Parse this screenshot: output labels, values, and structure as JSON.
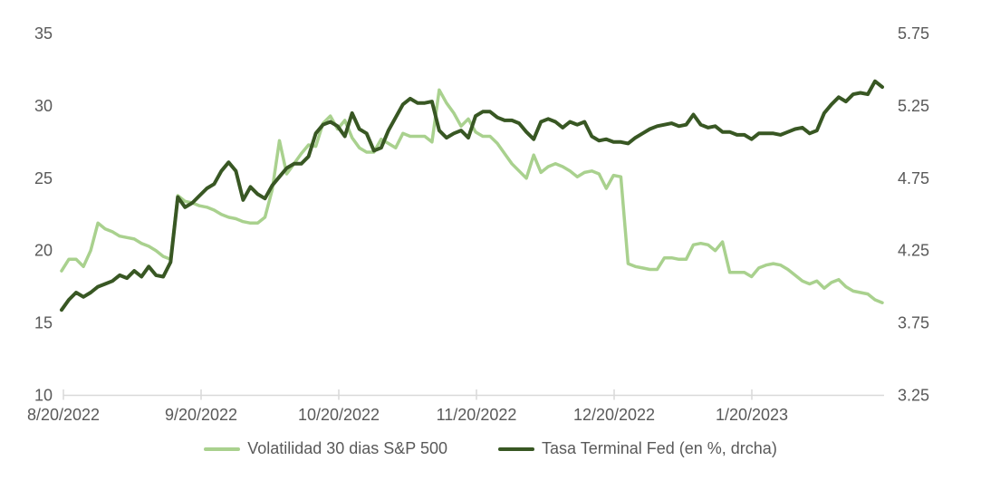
{
  "chart_data": {
    "type": "line",
    "title": "",
    "x_axis": {
      "tick_labels": [
        "8/20/2022",
        "9/20/2022",
        "10/20/2022",
        "11/20/2022",
        "12/20/2022",
        "1/20/2023"
      ],
      "range_days_from_first_tick": [
        0,
        184
      ],
      "grid": "off"
    },
    "left_y_axis": {
      "ticks": [
        35,
        30,
        25,
        20,
        15,
        10
      ],
      "range": [
        10,
        35
      ]
    },
    "right_y_axis": {
      "ticks": [
        5.75,
        5.25,
        4.75,
        4.25,
        3.75,
        3.25
      ],
      "range": [
        3.25,
        5.75
      ]
    },
    "legend_position": "bottom",
    "series": [
      {
        "name": "Volatilidad 30 dias S&P 500",
        "axis": "left",
        "color": "#A9D18E",
        "values": [
          18.6,
          19.4,
          19.4,
          18.9,
          20.0,
          21.9,
          21.5,
          21.3,
          21.0,
          20.9,
          20.8,
          20.5,
          20.3,
          20.0,
          19.6,
          19.4,
          23.8,
          23.4,
          23.3,
          23.1,
          23.0,
          22.8,
          22.5,
          22.3,
          22.2,
          22.0,
          21.9,
          21.9,
          22.3,
          24.2,
          27.6,
          25.3,
          26.0,
          26.7,
          27.3,
          27.2,
          28.8,
          29.3,
          28.4,
          29.0,
          27.8,
          27.1,
          26.8,
          26.8,
          27.7,
          27.4,
          27.1,
          28.1,
          27.9,
          27.9,
          27.9,
          27.5,
          31.1,
          30.2,
          29.5,
          28.6,
          29.1,
          28.2,
          27.9,
          27.9,
          27.4,
          26.7,
          26.0,
          25.5,
          25.0,
          26.6,
          25.4,
          25.8,
          26.0,
          25.8,
          25.5,
          25.1,
          25.4,
          25.5,
          25.3,
          24.3,
          25.2,
          25.1,
          19.1,
          18.9,
          18.8,
          18.7,
          18.7,
          19.5,
          19.5,
          19.4,
          19.4,
          20.4,
          20.5,
          20.4,
          20.0,
          20.6,
          18.5,
          18.5,
          18.5,
          18.2,
          18.8,
          19.0,
          19.1,
          19.0,
          18.7,
          18.3,
          17.9,
          17.7,
          17.9,
          17.4,
          17.8,
          18.0,
          17.5,
          17.2,
          17.1,
          17.0,
          16.6,
          16.4
        ]
      },
      {
        "name": "Tasa Terminal Fed (en %, drcha)",
        "axis": "right",
        "color": "#385723",
        "values": [
          3.84,
          3.91,
          3.96,
          3.93,
          3.96,
          4.0,
          4.02,
          4.04,
          4.08,
          4.06,
          4.11,
          4.07,
          4.14,
          4.08,
          4.07,
          4.17,
          4.62,
          4.55,
          4.58,
          4.63,
          4.68,
          4.71,
          4.8,
          4.86,
          4.8,
          4.6,
          4.69,
          4.64,
          4.61,
          4.7,
          4.76,
          4.82,
          4.85,
          4.85,
          4.9,
          5.06,
          5.12,
          5.14,
          5.11,
          5.04,
          5.2,
          5.09,
          5.06,
          4.94,
          4.96,
          5.08,
          5.17,
          5.26,
          5.3,
          5.27,
          5.27,
          5.28,
          5.08,
          5.03,
          5.06,
          5.08,
          5.03,
          5.18,
          5.21,
          5.21,
          5.17,
          5.15,
          5.15,
          5.13,
          5.07,
          5.02,
          5.14,
          5.16,
          5.14,
          5.1,
          5.14,
          5.12,
          5.14,
          5.04,
          5.01,
          5.02,
          5.0,
          5.0,
          4.99,
          5.03,
          5.06,
          5.09,
          5.11,
          5.12,
          5.13,
          5.11,
          5.12,
          5.19,
          5.12,
          5.1,
          5.11,
          5.07,
          5.07,
          5.05,
          5.05,
          5.02,
          5.06,
          5.06,
          5.06,
          5.05,
          5.07,
          5.09,
          5.1,
          5.06,
          5.08,
          5.2,
          5.26,
          5.31,
          5.28,
          5.33,
          5.34,
          5.33,
          5.42,
          5.38
        ]
      }
    ]
  },
  "colors": {
    "axis_text": "#595959",
    "axis_line": "#D9D9D9",
    "background": "#FFFFFF"
  }
}
